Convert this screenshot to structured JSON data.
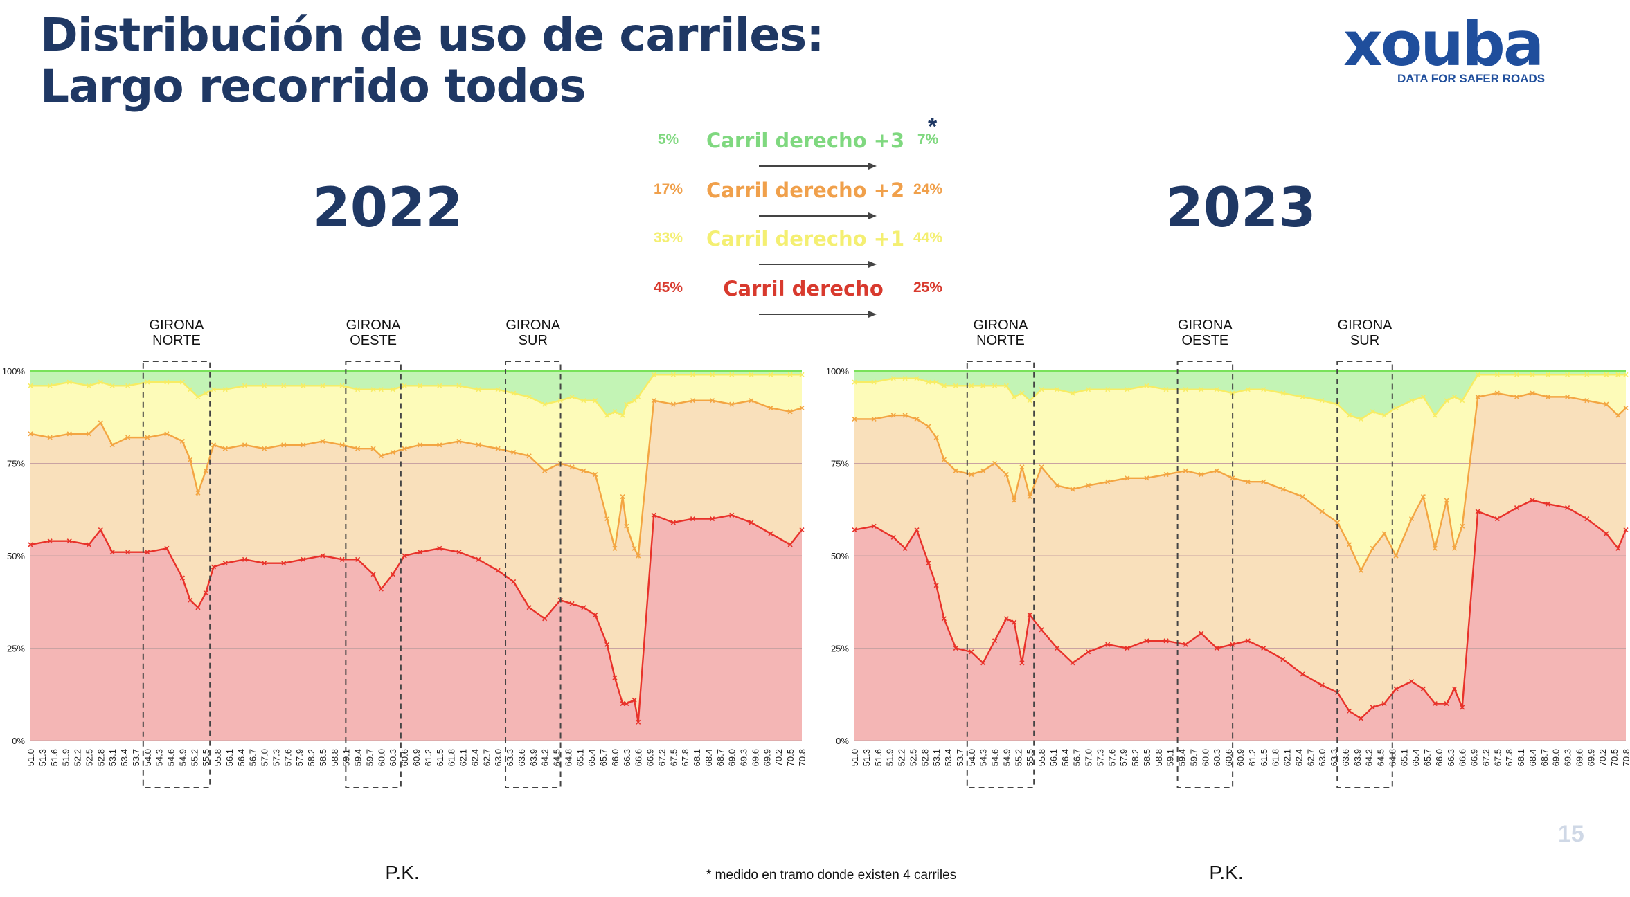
{
  "title": {
    "line1": "Distribución de uso de carriles:",
    "line2": "Largo recorrido todos"
  },
  "logo": {
    "word": "xouba",
    "tagline": "DATA FOR SAFER ROADS"
  },
  "years": {
    "left": "2022",
    "right": "2023"
  },
  "legend": {
    "asterisk": "*",
    "rows": [
      {
        "label": "Carril derecho +3",
        "pct_2022": "5%",
        "pct_2023": "7%",
        "color": "#7fd87f"
      },
      {
        "label": "Carril derecho +2",
        "pct_2022": "17%",
        "pct_2023": "24%",
        "color": "#f0a04b"
      },
      {
        "label": "Carril derecho +1",
        "pct_2022": "33%",
        "pct_2023": "44%",
        "color": "#f4ef72"
      },
      {
        "label": "Carril derecho",
        "pct_2022": "45%",
        "pct_2023": "25%",
        "color": "#d83a2e"
      }
    ]
  },
  "footnote": "* medido en tramo donde existen 4 carriles",
  "page_number": "15",
  "colors": {
    "lane0_fill": "#f4b6b5",
    "lane0_line": "#e8322a",
    "lane1_fill": "#f9e0bb",
    "lane1_line": "#f3a542",
    "lane2_fill": "#fdfbb9",
    "lane2_line": "#f7ec63",
    "lane3_fill": "#c3f4b5",
    "lane3_line": "#79e25a",
    "grid": "#c9a3a3",
    "box": "#444444"
  },
  "chart_data": [
    {
      "type": "area",
      "stacked": true,
      "year": "2022",
      "xlabel": "P.K.",
      "ylabel": "",
      "ylim": [
        0,
        100
      ],
      "yticks": [
        "0%",
        "25%",
        "50%",
        "75%",
        "100%"
      ],
      "xlim": [
        51.0,
        70.8
      ],
      "x_ticks": [
        "51.0",
        "51.3",
        "51.6",
        "51.9",
        "52.2",
        "52.5",
        "52.8",
        "53.1",
        "53.4",
        "53.7",
        "54.0",
        "54.3",
        "54.6",
        "54.9",
        "55.2",
        "55.5",
        "55.8",
        "56.1",
        "56.4",
        "56.7",
        "57.0",
        "57.3",
        "57.6",
        "57.9",
        "58.2",
        "58.5",
        "58.8",
        "59.1",
        "59.4",
        "59.7",
        "60.0",
        "60.3",
        "60.6",
        "60.9",
        "61.2",
        "61.5",
        "61.8",
        "62.1",
        "62.4",
        "62.7",
        "63.0",
        "63.3",
        "63.6",
        "63.9",
        "64.2",
        "64.5",
        "64.8",
        "65.1",
        "65.4",
        "65.7",
        "66.0",
        "66.3",
        "66.6",
        "66.9",
        "67.2",
        "67.5",
        "67.8",
        "68.1",
        "68.4",
        "68.7",
        "69.0",
        "69.3",
        "69.6",
        "69.9",
        "70.2",
        "70.5",
        "70.8"
      ],
      "annotations": [
        {
          "label": "GIRONA\nNORTE",
          "x_from": 54.0,
          "x_to": 55.5
        },
        {
          "label": "GIRONA\nOESTE",
          "x_from": 59.2,
          "x_to": 60.4
        },
        {
          "label": "GIRONA\nSUR",
          "x_from": 63.3,
          "x_to": 64.5
        }
      ],
      "series": [
        {
          "name": "Carril derecho",
          "x": [
            51.0,
            51.5,
            52.0,
            52.5,
            52.8,
            53.1,
            53.5,
            54.0,
            54.5,
            54.9,
            55.1,
            55.3,
            55.5,
            55.7,
            56.0,
            56.5,
            57.0,
            57.5,
            58.0,
            58.5,
            59.0,
            59.4,
            59.8,
            60.0,
            60.3,
            60.6,
            61.0,
            61.5,
            62.0,
            62.5,
            63.0,
            63.4,
            63.8,
            64.2,
            64.6,
            64.9,
            65.2,
            65.5,
            65.8,
            66.0,
            66.2,
            66.3,
            66.5,
            66.6,
            67.0,
            67.5,
            68.0,
            68.5,
            69.0,
            69.5,
            70.0,
            70.5,
            70.8
          ],
          "values": [
            53,
            54,
            54,
            53,
            57,
            51,
            51,
            51,
            52,
            44,
            38,
            36,
            40,
            47,
            48,
            49,
            48,
            48,
            49,
            50,
            49,
            49,
            45,
            41,
            45,
            50,
            51,
            52,
            51,
            49,
            46,
            43,
            36,
            33,
            38,
            37,
            36,
            34,
            26,
            17,
            10,
            10,
            11,
            5,
            61,
            59,
            60,
            60,
            61,
            59,
            56,
            53,
            57
          ]
        },
        {
          "name": "Carril derecho +1",
          "x": [
            51.0,
            51.5,
            52.0,
            52.5,
            52.8,
            53.1,
            53.5,
            54.0,
            54.5,
            54.9,
            55.1,
            55.3,
            55.5,
            55.7,
            56.0,
            56.5,
            57.0,
            57.5,
            58.0,
            58.5,
            59.0,
            59.4,
            59.8,
            60.0,
            60.3,
            60.6,
            61.0,
            61.5,
            62.0,
            62.5,
            63.0,
            63.4,
            63.8,
            64.2,
            64.6,
            64.9,
            65.2,
            65.5,
            65.8,
            66.0,
            66.2,
            66.3,
            66.5,
            66.6,
            67.0,
            67.5,
            68.0,
            68.5,
            69.0,
            69.5,
            70.0,
            70.5,
            70.8
          ],
          "values": [
            83,
            82,
            83,
            83,
            86,
            80,
            82,
            82,
            83,
            81,
            76,
            67,
            73,
            80,
            79,
            80,
            79,
            80,
            80,
            81,
            80,
            79,
            79,
            77,
            78,
            79,
            80,
            80,
            81,
            80,
            79,
            78,
            77,
            73,
            75,
            74,
            73,
            72,
            60,
            52,
            66,
            58,
            52,
            50,
            92,
            91,
            92,
            92,
            91,
            92,
            90,
            89,
            90
          ]
        },
        {
          "name": "Carril derecho +2",
          "x": [
            51.0,
            51.5,
            52.0,
            52.5,
            52.8,
            53.1,
            53.5,
            54.0,
            54.5,
            54.9,
            55.1,
            55.3,
            55.5,
            55.7,
            56.0,
            56.5,
            57.0,
            57.5,
            58.0,
            58.5,
            59.0,
            59.4,
            59.8,
            60.0,
            60.3,
            60.6,
            61.0,
            61.5,
            62.0,
            62.5,
            63.0,
            63.4,
            63.8,
            64.2,
            64.6,
            64.9,
            65.2,
            65.5,
            65.8,
            66.0,
            66.2,
            66.3,
            66.5,
            66.6,
            67.0,
            67.5,
            68.0,
            68.5,
            69.0,
            69.5,
            70.0,
            70.5,
            70.8
          ],
          "values": [
            96,
            96,
            97,
            96,
            97,
            96,
            96,
            97,
            97,
            97,
            95,
            93,
            94,
            95,
            95,
            96,
            96,
            96,
            96,
            96,
            96,
            95,
            95,
            95,
            95,
            96,
            96,
            96,
            96,
            95,
            95,
            94,
            93,
            91,
            92,
            93,
            92,
            92,
            88,
            89,
            88,
            91,
            92,
            93,
            99,
            99,
            99,
            99,
            99,
            99,
            99,
            99,
            99
          ]
        },
        {
          "name": "Carril derecho +3",
          "x": [
            51.0,
            70.8
          ],
          "values": [
            100,
            100
          ]
        }
      ]
    },
    {
      "type": "area",
      "stacked": true,
      "year": "2023",
      "xlabel": "P.K.",
      "ylabel": "",
      "ylim": [
        0,
        100
      ],
      "yticks": [
        "0%",
        "25%",
        "50%",
        "75%",
        "100%"
      ],
      "xlim": [
        51.0,
        70.8
      ],
      "x_ticks": [
        "51.0",
        "51.3",
        "51.6",
        "51.9",
        "52.2",
        "52.5",
        "52.8",
        "53.1",
        "53.4",
        "53.7",
        "54.0",
        "54.3",
        "54.6",
        "54.9",
        "55.2",
        "55.5",
        "55.8",
        "56.1",
        "56.4",
        "56.7",
        "57.0",
        "57.3",
        "57.6",
        "57.9",
        "58.2",
        "58.5",
        "58.8",
        "59.1",
        "59.4",
        "59.7",
        "60.0",
        "60.3",
        "60.6",
        "60.9",
        "61.2",
        "61.5",
        "61.8",
        "62.1",
        "62.4",
        "62.7",
        "63.0",
        "63.3",
        "63.6",
        "63.9",
        "64.2",
        "64.5",
        "64.8",
        "65.1",
        "65.4",
        "65.7",
        "66.0",
        "66.3",
        "66.6",
        "66.9",
        "67.2",
        "67.5",
        "67.8",
        "68.1",
        "68.4",
        "68.7",
        "69.0",
        "69.3",
        "69.6",
        "69.9",
        "70.2",
        "70.5",
        "70.8"
      ],
      "annotations": [
        {
          "label": "GIRONA\nNORTE",
          "x_from": 54.0,
          "x_to": 55.5
        },
        {
          "label": "GIRONA\nOESTE",
          "x_from": 59.4,
          "x_to": 60.6
        },
        {
          "label": "GIRONA\nSUR",
          "x_from": 63.5,
          "x_to": 64.7
        }
      ],
      "series": [
        {
          "name": "Carril derecho",
          "x": [
            51.0,
            51.5,
            52.0,
            52.3,
            52.6,
            52.9,
            53.1,
            53.3,
            53.6,
            54.0,
            54.3,
            54.6,
            54.9,
            55.1,
            55.3,
            55.5,
            55.8,
            56.2,
            56.6,
            57.0,
            57.5,
            58.0,
            58.5,
            59.0,
            59.5,
            59.9,
            60.3,
            60.7,
            61.1,
            61.5,
            62.0,
            62.5,
            63.0,
            63.4,
            63.7,
            64.0,
            64.3,
            64.6,
            64.9,
            65.3,
            65.6,
            65.9,
            66.2,
            66.4,
            66.6,
            67.0,
            67.5,
            68.0,
            68.4,
            68.8,
            69.3,
            69.8,
            70.3,
            70.6,
            70.8
          ],
          "values": [
            57,
            58,
            55,
            52,
            57,
            48,
            42,
            33,
            25,
            24,
            21,
            27,
            33,
            32,
            21,
            34,
            30,
            25,
            21,
            24,
            26,
            25,
            27,
            27,
            26,
            29,
            25,
            26,
            27,
            25,
            22,
            18,
            15,
            13,
            8,
            6,
            9,
            10,
            14,
            16,
            14,
            10,
            10,
            14,
            9,
            62,
            60,
            63,
            65,
            64,
            63,
            60,
            56,
            52,
            57
          ]
        },
        {
          "name": "Carril derecho +1",
          "x": [
            51.0,
            51.5,
            52.0,
            52.3,
            52.6,
            52.9,
            53.1,
            53.3,
            53.6,
            54.0,
            54.3,
            54.6,
            54.9,
            55.1,
            55.3,
            55.5,
            55.8,
            56.2,
            56.6,
            57.0,
            57.5,
            58.0,
            58.5,
            59.0,
            59.5,
            59.9,
            60.3,
            60.7,
            61.1,
            61.5,
            62.0,
            62.5,
            63.0,
            63.4,
            63.7,
            64.0,
            64.3,
            64.6,
            64.9,
            65.3,
            65.6,
            65.9,
            66.2,
            66.4,
            66.6,
            67.0,
            67.5,
            68.0,
            68.4,
            68.8,
            69.3,
            69.8,
            70.3,
            70.6,
            70.8
          ],
          "values": [
            87,
            87,
            88,
            88,
            87,
            85,
            82,
            76,
            73,
            72,
            73,
            75,
            72,
            65,
            74,
            66,
            74,
            69,
            68,
            69,
            70,
            71,
            71,
            72,
            73,
            72,
            73,
            71,
            70,
            70,
            68,
            66,
            62,
            59,
            53,
            46,
            52,
            56,
            50,
            60,
            66,
            52,
            65,
            52,
            58,
            93,
            94,
            93,
            94,
            93,
            93,
            92,
            91,
            88,
            90
          ]
        },
        {
          "name": "Carril derecho +2",
          "x": [
            51.0,
            51.5,
            52.0,
            52.3,
            52.6,
            52.9,
            53.1,
            53.3,
            53.6,
            54.0,
            54.3,
            54.6,
            54.9,
            55.1,
            55.3,
            55.5,
            55.8,
            56.2,
            56.6,
            57.0,
            57.5,
            58.0,
            58.5,
            59.0,
            59.5,
            59.9,
            60.3,
            60.7,
            61.1,
            61.5,
            62.0,
            62.5,
            63.0,
            63.4,
            63.7,
            64.0,
            64.3,
            64.6,
            64.9,
            65.3,
            65.6,
            65.9,
            66.2,
            66.4,
            66.6,
            67.0,
            67.5,
            68.0,
            68.4,
            68.8,
            69.3,
            69.8,
            70.3,
            70.6,
            70.8
          ],
          "values": [
            97,
            97,
            98,
            98,
            98,
            97,
            97,
            96,
            96,
            96,
            96,
            96,
            96,
            93,
            94,
            92,
            95,
            95,
            94,
            95,
            95,
            95,
            96,
            95,
            95,
            95,
            95,
            94,
            95,
            95,
            94,
            93,
            92,
            91,
            88,
            87,
            89,
            88,
            90,
            92,
            93,
            88,
            92,
            93,
            92,
            99,
            99,
            99,
            99,
            99,
            99,
            99,
            99,
            99,
            99
          ]
        },
        {
          "name": "Carril derecho +3",
          "x": [
            51.0,
            70.8
          ],
          "values": [
            100,
            100
          ]
        }
      ]
    }
  ]
}
